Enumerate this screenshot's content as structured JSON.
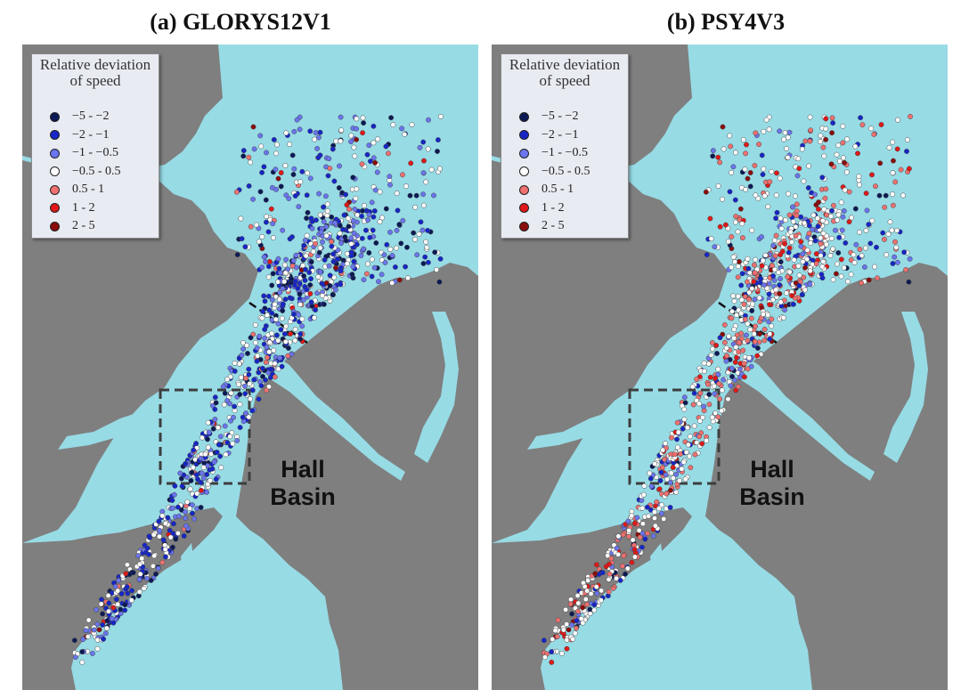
{
  "colors": {
    "ocean": "#97dbe5",
    "land": "#7f7f7f",
    "box": "#3d3d3d",
    "class_colors": [
      "#0b1a55",
      "#1626c7",
      "#6a75ef",
      "#ffffff",
      "#f07070",
      "#e01818",
      "#8a0c0c"
    ]
  },
  "legend": {
    "title_line1": "Relative deviation",
    "title_line2": "of speed",
    "classes": [
      {
        "label": "−5  -  −2"
      },
      {
        "label": "−2  -  −1"
      },
      {
        "label": "−1  -  −0.5"
      },
      {
        "label": "−0.5  -  0.5"
      },
      {
        "label": "0.5  -  1"
      },
      {
        "label": "1  -  2"
      },
      {
        "label": "2  -  5"
      }
    ]
  },
  "panels": [
    {
      "title": "(a) GLORYS12V1",
      "class_weights": [
        0.13,
        0.27,
        0.21,
        0.31,
        0.05,
        0.02,
        0.01
      ]
    },
    {
      "title": "(b) PSY4V3",
      "class_weights": [
        0.04,
        0.1,
        0.13,
        0.38,
        0.22,
        0.09,
        0.04
      ]
    }
  ],
  "place_label": {
    "line1": "Hall",
    "line2": "Basin"
  }
}
